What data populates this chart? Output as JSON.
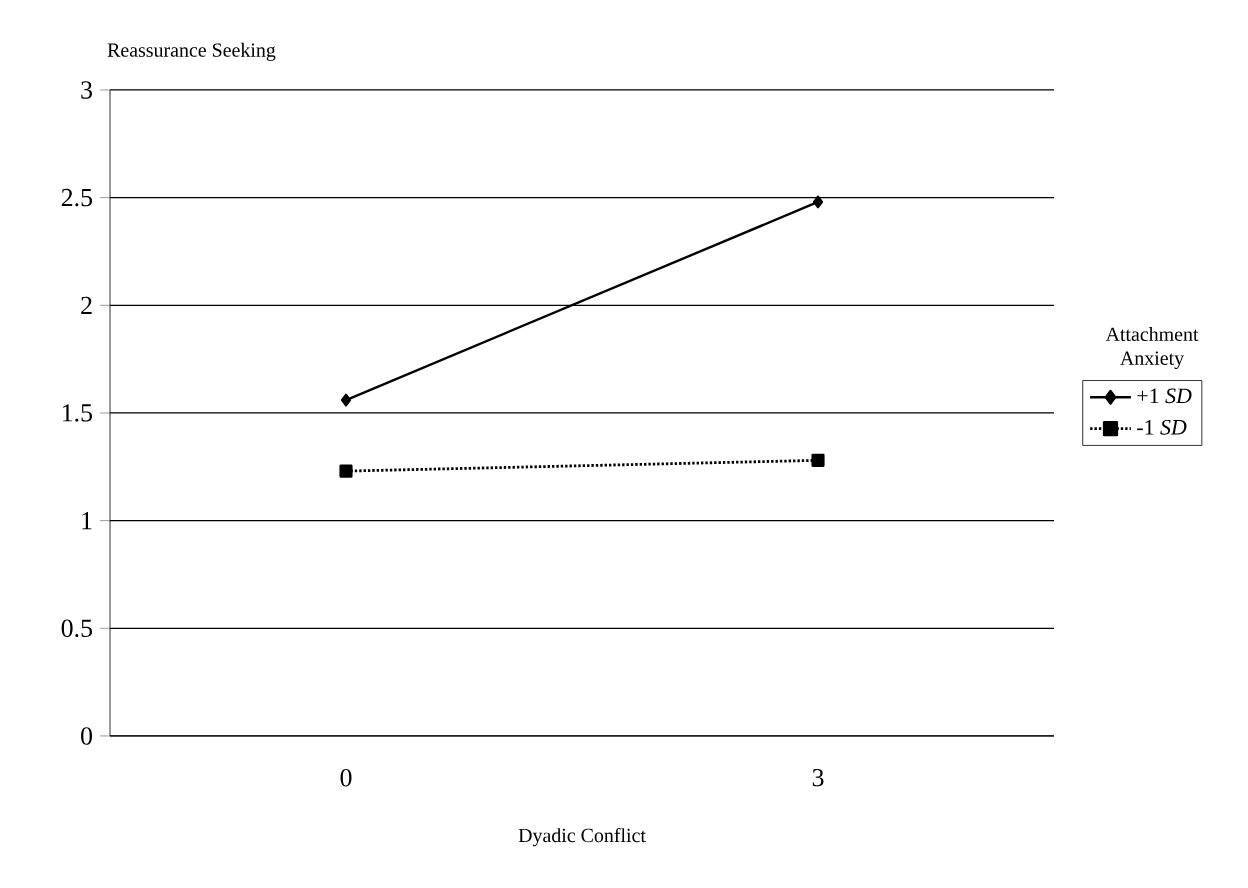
{
  "chart_data": {
    "type": "line",
    "ylabel": "Reassurance Seeking",
    "xlabel": "Dyadic Conflict",
    "legend_title": "Attachment Anxiety",
    "categories": [
      "0",
      "3"
    ],
    "series": [
      {
        "name": "+1 *SD*",
        "color": "#000000",
        "values": [
          1.56,
          2.48
        ],
        "marker": "diamond",
        "line_style": "solid"
      },
      {
        "name": "-1 *SD*",
        "color": "#000000",
        "values": [
          1.23,
          1.28
        ],
        "marker": "square",
        "line_style": "dotted"
      }
    ],
    "ylim": [
      0,
      3
    ],
    "yticks": [
      0,
      0.5,
      1,
      1.5,
      2,
      2.5,
      3
    ],
    "grid": "y",
    "legend": "right"
  }
}
